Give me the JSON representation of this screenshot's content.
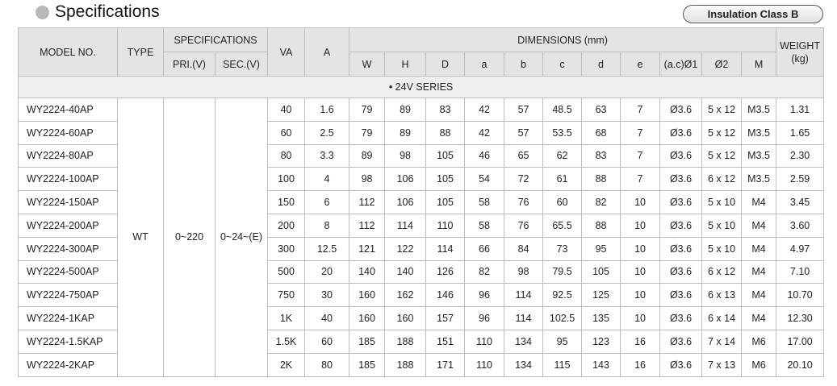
{
  "title": "Specifications",
  "badge": "Insulation Class B",
  "headers": {
    "model": "MODEL NO.",
    "type": "TYPE",
    "specs": "SPECIFICATIONS",
    "pri": "PRI.(V)",
    "sec": "SEC.(V)",
    "va": "VA",
    "a": "A",
    "dims": "DIMENSIONS (mm)",
    "dim_cols": [
      "W",
      "H",
      "D",
      "a",
      "b",
      "c",
      "d",
      "e",
      "(a.c)Ø1",
      "Ø2",
      "M"
    ],
    "weight": "WEIGHT (kg)"
  },
  "series": "• 24V SERIES",
  "shared": {
    "type": "WT",
    "pri": "0~220",
    "sec": "0~24~(E)"
  },
  "rows": [
    [
      "WY2224-40AP",
      "40",
      "1.6",
      "79",
      "89",
      "83",
      "42",
      "57",
      "48.5",
      "63",
      "7",
      "Ø3.6",
      "5 x 12",
      "M3.5",
      "1.31"
    ],
    [
      "WY2224-60AP",
      "60",
      "2.5",
      "79",
      "89",
      "88",
      "42",
      "57",
      "53.5",
      "68",
      "7",
      "Ø3.6",
      "5 x 12",
      "M3.5",
      "1.65"
    ],
    [
      "WY2224-80AP",
      "80",
      "3.3",
      "89",
      "98",
      "105",
      "46",
      "65",
      "62",
      "83",
      "7",
      "Ø3.6",
      "5 x 12",
      "M3.5",
      "2.30"
    ],
    [
      "WY2224-100AP",
      "100",
      "4",
      "98",
      "106",
      "105",
      "54",
      "72",
      "61",
      "88",
      "7",
      "Ø3.6",
      "6 x 12",
      "M3.5",
      "2.59"
    ],
    [
      "WY2224-150AP",
      "150",
      "6",
      "112",
      "106",
      "105",
      "58",
      "76",
      "60",
      "82",
      "10",
      "Ø3.6",
      "5 x 10",
      "M4",
      "3.45"
    ],
    [
      "WY2224-200AP",
      "200",
      "8",
      "112",
      "114",
      "110",
      "58",
      "76",
      "65.5",
      "88",
      "10",
      "Ø3.6",
      "5 x 10",
      "M4",
      "3.60"
    ],
    [
      "WY2224-300AP",
      "300",
      "12.5",
      "121",
      "122",
      "114",
      "66",
      "84",
      "73",
      "95",
      "10",
      "Ø3.6",
      "5 x 10",
      "M4",
      "4.97"
    ],
    [
      "WY2224-500AP",
      "500",
      "20",
      "140",
      "140",
      "126",
      "82",
      "98",
      "79.5",
      "105",
      "10",
      "Ø3.6",
      "6 x 12",
      "M4",
      "7.10"
    ],
    [
      "WY2224-750AP",
      "750",
      "30",
      "160",
      "162",
      "146",
      "96",
      "114",
      "92.5",
      "125",
      "10",
      "Ø3.6",
      "6 x 13",
      "M4",
      "10.70"
    ],
    [
      "WY2224-1KAP",
      "1K",
      "40",
      "160",
      "160",
      "157",
      "96",
      "114",
      "102.5",
      "135",
      "10",
      "Ø3.6",
      "6 x 14",
      "M4",
      "12.30"
    ],
    [
      "WY2224-1.5KAP",
      "1.5K",
      "60",
      "185",
      "188",
      "151",
      "110",
      "134",
      "95",
      "123",
      "16",
      "Ø3.6",
      "7 x 14",
      "M6",
      "17.00"
    ],
    [
      "WY2224-2KAP",
      "2K",
      "80",
      "185",
      "188",
      "171",
      "110",
      "134",
      "115",
      "143",
      "16",
      "Ø3.6",
      "7 x 13",
      "M6",
      "20.10"
    ]
  ]
}
